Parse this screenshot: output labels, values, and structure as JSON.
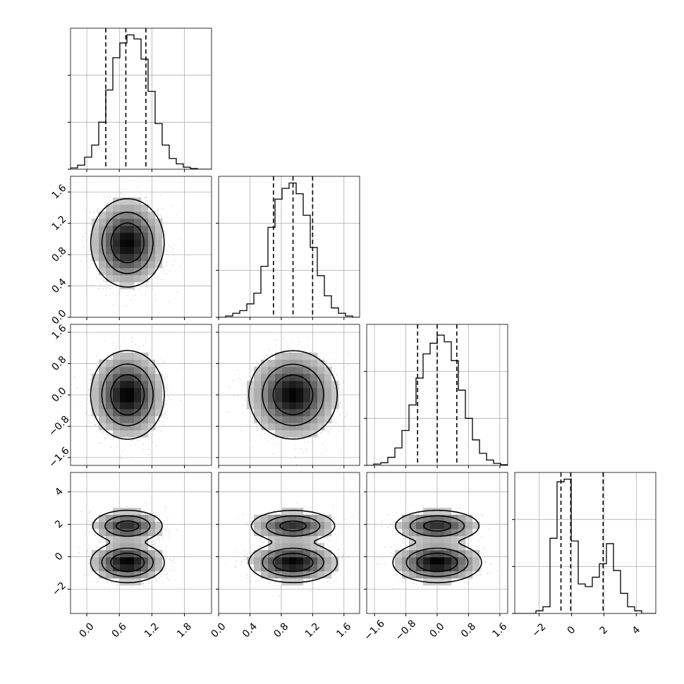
{
  "chart_data": {
    "type": "corner",
    "description_note": "",
    "parameters": [
      {
        "range": [
          -0.3,
          2.3
        ],
        "ticks": [
          0.0,
          0.6,
          1.2,
          1.8
        ],
        "tick_labels": [
          "0.0",
          "0.6",
          "1.2",
          "1.8"
        ],
        "quantiles": [
          0.35,
          0.72,
          1.09
        ]
      },
      {
        "range": [
          0.0,
          1.8
        ],
        "ticks": [
          0.0,
          0.4,
          0.8,
          1.2,
          1.6
        ],
        "tick_labels": [
          "0.0",
          "0.4",
          "0.8",
          "1.2",
          "1.6"
        ],
        "quantiles": [
          0.7,
          0.95,
          1.2
        ]
      },
      {
        "range": [
          -1.8,
          1.8
        ],
        "ticks": [
          -1.6,
          -0.8,
          0.0,
          0.8,
          1.6
        ],
        "tick_labels": [
          "−1.6",
          "−0.8",
          "0.0",
          "0.8",
          "1.6"
        ],
        "quantiles": [
          -0.5,
          0.0,
          0.5
        ]
      },
      {
        "range": [
          -3.5,
          5.2
        ],
        "ticks": [
          -2,
          0,
          2,
          4
        ],
        "tick_labels": [
          "−2",
          "0",
          "2",
          "4"
        ],
        "quantiles": [
          -0.65,
          -0.05,
          1.95
        ]
      }
    ],
    "histograms": [
      {
        "param": 0,
        "bins": 20,
        "x_edges_start": -0.3,
        "x_edges_end": 2.3,
        "counts": [
          0.01,
          0.03,
          0.09,
          0.18,
          0.35,
          0.59,
          0.83,
          0.94,
          1.0,
          0.97,
          0.82,
          0.58,
          0.34,
          0.18,
          0.08,
          0.04,
          0.015,
          0.005,
          0.0,
          0.0
        ]
      },
      {
        "param": 1,
        "bins": 20,
        "x_edges_start": 0.0,
        "x_edges_end": 1.8,
        "counts": [
          0.0,
          0.01,
          0.03,
          0.05,
          0.1,
          0.18,
          0.38,
          0.67,
          0.88,
          0.96,
          1.0,
          0.92,
          0.76,
          0.52,
          0.31,
          0.16,
          0.07,
          0.03,
          0.01,
          0.0
        ]
      },
      {
        "param": 2,
        "bins": 20,
        "x_edges_start": -1.8,
        "x_edges_end": 1.8,
        "counts": [
          0.0,
          0.01,
          0.02,
          0.06,
          0.13,
          0.26,
          0.45,
          0.65,
          0.83,
          0.91,
          0.97,
          0.92,
          0.78,
          0.56,
          0.35,
          0.19,
          0.09,
          0.04,
          0.015,
          0.005
        ]
      },
      {
        "param": 3,
        "bins": 20,
        "x_edges_start": -3.5,
        "x_edges_end": 5.2,
        "counts": [
          0.0,
          0.0,
          0.0,
          0.02,
          0.05,
          0.56,
          0.98,
          1.0,
          0.54,
          0.22,
          0.2,
          0.27,
          0.37,
          0.52,
          0.32,
          0.15,
          0.05,
          0.02,
          0.0,
          0.0
        ]
      }
    ],
    "pair_components": {
      "0": [
        {
          "w": 1,
          "m": 0.75,
          "s": 0.3
        }
      ],
      "1": [
        {
          "w": 1,
          "m": 0.95,
          "s": 0.25
        }
      ],
      "2": [
        {
          "w": 1,
          "m": 0.0,
          "s": 0.5
        }
      ],
      "3": [
        {
          "w": 0.62,
          "m": -0.35,
          "s": 0.55
        },
        {
          "w": 0.38,
          "m": 1.9,
          "s": 0.45
        }
      ]
    },
    "contour_levels": [
      0.61,
      0.3,
      0.08
    ],
    "grid": true,
    "axis_labels": [],
    "title": ""
  }
}
